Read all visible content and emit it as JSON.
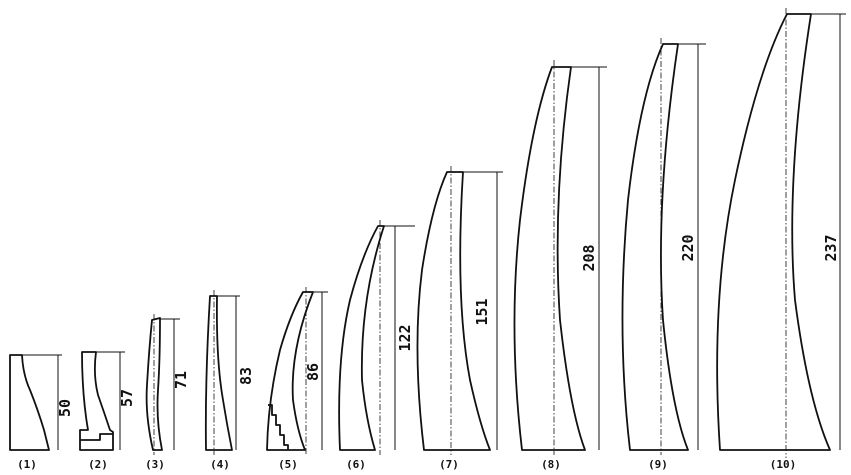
{
  "figure": {
    "profiles": [
      {
        "caption": "(1)",
        "height_label": "50"
      },
      {
        "caption": "(2)",
        "height_label": "57"
      },
      {
        "caption": "(3)",
        "height_label": "71"
      },
      {
        "caption": "(4)",
        "height_label": "83"
      },
      {
        "caption": "(5)",
        "height_label": "86"
      },
      {
        "caption": "(6)",
        "height_label": "122"
      },
      {
        "caption": "(7)",
        "height_label": "151"
      },
      {
        "caption": "(8)",
        "height_label": "208"
      },
      {
        "caption": "(9)",
        "height_label": "220"
      },
      {
        "caption": "(10)",
        "height_label": "237"
      }
    ]
  },
  "colors": {
    "stroke": "#111111",
    "background": "#ffffff"
  }
}
